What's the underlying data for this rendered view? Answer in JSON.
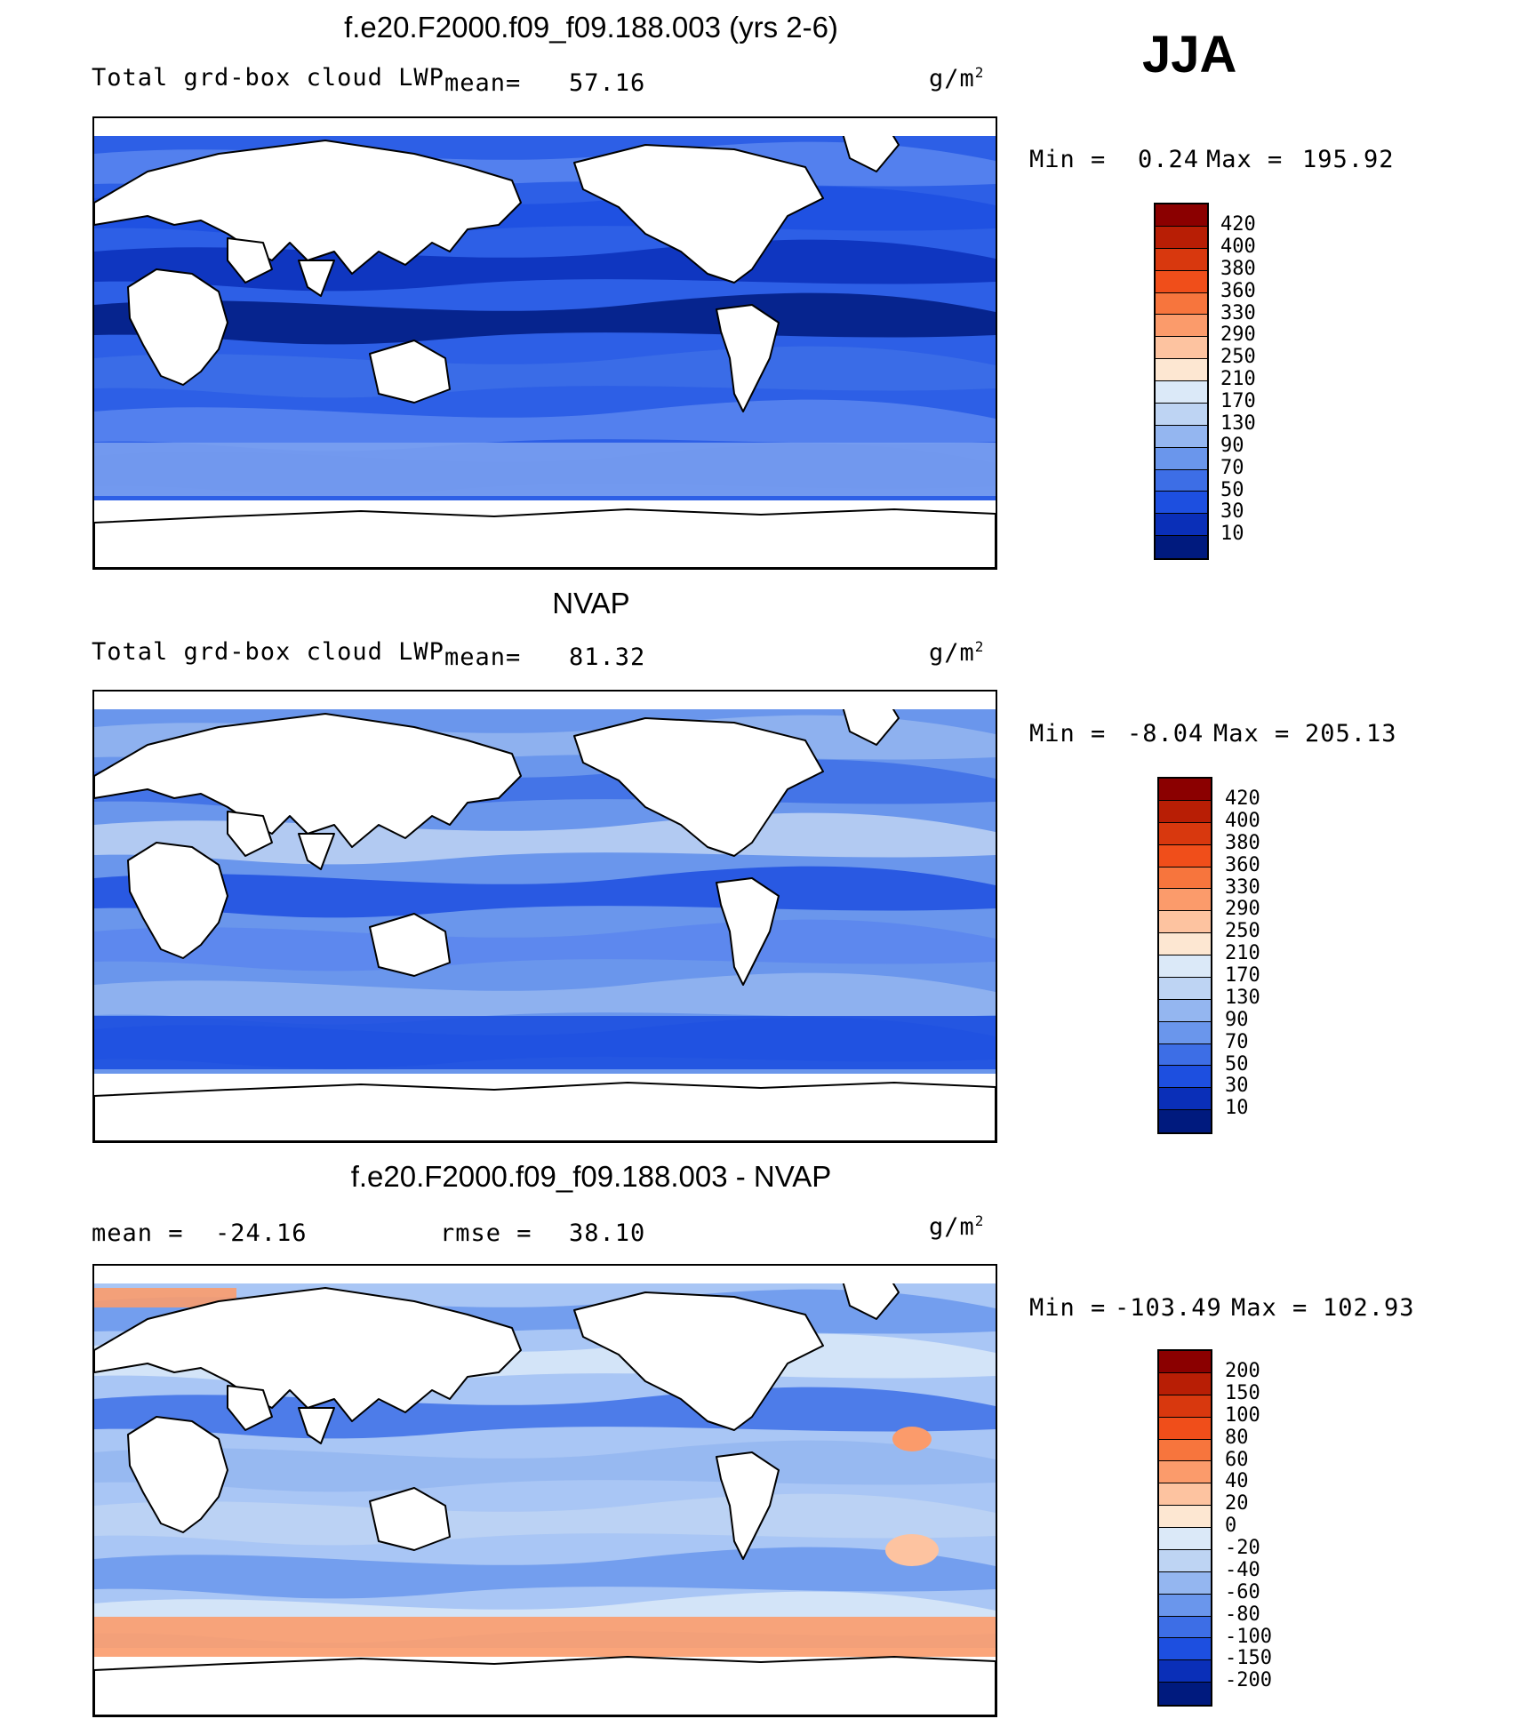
{
  "season": "JJA",
  "panels": [
    {
      "title": "f.e20.F2000.f09_f09.188.003 (yrs 2-6)",
      "variable": "Total grd-box cloud LWP",
      "mean_label": "mean=",
      "mean_value": "57.16",
      "units": "g/m",
      "units_sup": "2",
      "min_label": "Min =",
      "min_value": "0.24",
      "max_label": "Max =",
      "max_value": "195.92",
      "colorbar": {
        "labels": [
          "420",
          "400",
          "380",
          "360",
          "330",
          "290",
          "250",
          "210",
          "170",
          "130",
          "90",
          "70",
          "50",
          "30",
          "10"
        ],
        "colors": [
          "#8b0000",
          "#b81e05",
          "#d8380e",
          "#f04e1a",
          "#f7753d",
          "#fb9b6b",
          "#fdc3a0",
          "#fde7d2",
          "#dbe9f8",
          "#bed4f3",
          "#94b6f0",
          "#6a96ec",
          "#3d6ee6",
          "#1d4fe0",
          "#0a2fb8",
          "#001a7e"
        ]
      },
      "map_type": "sequential"
    },
    {
      "title": "NVAP",
      "variable": "Total grd-box cloud LWP",
      "mean_label": "mean=",
      "mean_value": "81.32",
      "units": "g/m",
      "units_sup": "2",
      "min_label": "Min =",
      "min_value": "-8.04",
      "max_label": "Max =",
      "max_value": "205.13",
      "colorbar": {
        "labels": [
          "420",
          "400",
          "380",
          "360",
          "330",
          "290",
          "250",
          "210",
          "170",
          "130",
          "90",
          "70",
          "50",
          "30",
          "10"
        ],
        "colors": [
          "#8b0000",
          "#b81e05",
          "#d8380e",
          "#f04e1a",
          "#f7753d",
          "#fb9b6b",
          "#fdc3a0",
          "#fde7d2",
          "#dbe9f8",
          "#bed4f3",
          "#94b6f0",
          "#6a96ec",
          "#3d6ee6",
          "#1d4fe0",
          "#0a2fb8",
          "#001a7e"
        ]
      },
      "map_type": "sequential-light"
    },
    {
      "title": "f.e20.F2000.f09_f09.188.003 - NVAP",
      "mean_label": "mean =",
      "mean_value": "-24.16",
      "rmse_label": "rmse =",
      "rmse_value": "38.10",
      "units": "g/m",
      "units_sup": "2",
      "min_label": "Min =",
      "min_value": "-103.49",
      "max_label": "Max =",
      "max_value": "102.93",
      "colorbar": {
        "labels": [
          "200",
          "150",
          "100",
          "80",
          "60",
          "40",
          "20",
          "0",
          "-20",
          "-40",
          "-60",
          "-80",
          "-100",
          "-150",
          "-200"
        ],
        "colors": [
          "#8b0000",
          "#b81e05",
          "#d8380e",
          "#f04e1a",
          "#f7753d",
          "#fb9b6b",
          "#fdc3a0",
          "#fde7d2",
          "#dbe9f8",
          "#bed4f3",
          "#94b6f0",
          "#6a96ec",
          "#3d6ee6",
          "#1d4fe0",
          "#0a2fb8",
          "#001a7e"
        ]
      },
      "map_type": "difference"
    }
  ]
}
